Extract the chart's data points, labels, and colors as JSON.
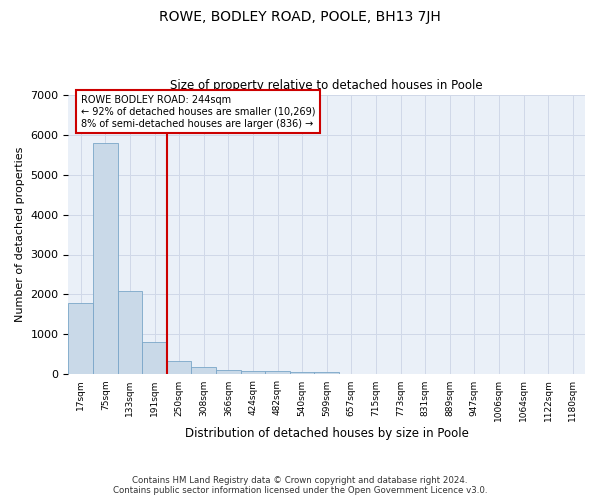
{
  "title_line1": "ROWE, BODLEY ROAD, POOLE, BH13 7JH",
  "title_line2": "Size of property relative to detached houses in Poole",
  "xlabel": "Distribution of detached houses by size in Poole",
  "ylabel": "Number of detached properties",
  "footer_line1": "Contains HM Land Registry data © Crown copyright and database right 2024.",
  "footer_line2": "Contains public sector information licensed under the Open Government Licence v3.0.",
  "annotation_line1": "ROWE BODLEY ROAD: 244sqm",
  "annotation_line2": "← 92% of detached houses are smaller (10,269)",
  "annotation_line3": "8% of semi-detached houses are larger (836) →",
  "bar_color": "#c9d9e8",
  "bar_edge_color": "#7aa6c8",
  "vline_color": "#cc0000",
  "vline_x_index": 3.5,
  "categories": [
    "17sqm",
    "75sqm",
    "133sqm",
    "191sqm",
    "250sqm",
    "308sqm",
    "366sqm",
    "424sqm",
    "482sqm",
    "540sqm",
    "599sqm",
    "657sqm",
    "715sqm",
    "773sqm",
    "831sqm",
    "889sqm",
    "947sqm",
    "1006sqm",
    "1064sqm",
    "1122sqm",
    "1180sqm"
  ],
  "values": [
    1780,
    5780,
    2080,
    800,
    340,
    190,
    110,
    95,
    80,
    70,
    60,
    0,
    0,
    0,
    0,
    0,
    0,
    0,
    0,
    0,
    0
  ],
  "ylim": [
    0,
    7000
  ],
  "yticks": [
    0,
    1000,
    2000,
    3000,
    4000,
    5000,
    6000,
    7000
  ],
  "grid_color": "#d0d8e8",
  "background_color": "#eaf0f8",
  "fig_width": 6.0,
  "fig_height": 5.0,
  "dpi": 100
}
